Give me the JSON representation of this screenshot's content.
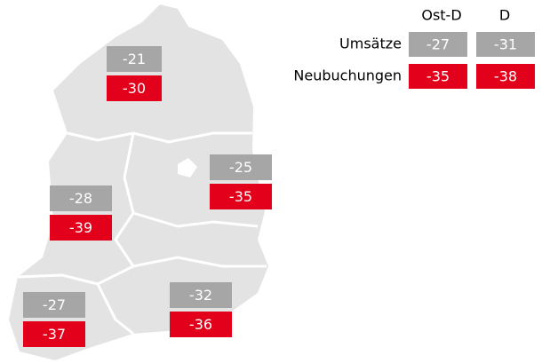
{
  "legend": {
    "columns": [
      "Ost-D",
      "D"
    ],
    "rows": [
      {
        "label": "Umsätze",
        "values": [
          -27,
          -31
        ]
      },
      {
        "label": "Neubuchungen",
        "values": [
          -35,
          -38
        ]
      }
    ]
  },
  "regions": [
    {
      "umsaetze": -21,
      "neubuchungen": -30
    },
    {
      "umsaetze": -25,
      "neubuchungen": -35
    },
    {
      "umsaetze": -28,
      "neubuchungen": -39
    },
    {
      "umsaetze": -27,
      "neubuchungen": -37
    },
    {
      "umsaetze": -32,
      "neubuchungen": -36
    }
  ]
}
